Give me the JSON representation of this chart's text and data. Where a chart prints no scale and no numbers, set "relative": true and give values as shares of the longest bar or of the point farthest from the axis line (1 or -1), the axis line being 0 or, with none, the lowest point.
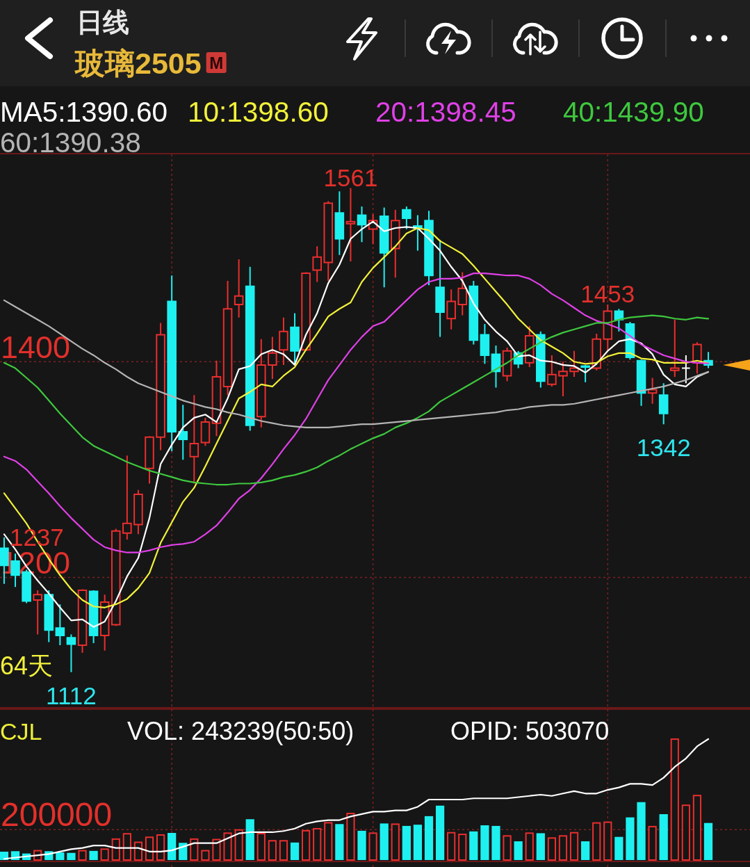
{
  "chart_data": [
    {
      "type": "candlestick",
      "title": "日线",
      "subtitle": "玻璃2505",
      "annotations": [
        "M",
        "64天",
        {
          "text": "1561",
          "y": 1561
        },
        {
          "text": "1453",
          "y": 1453
        },
        {
          "text": "1342",
          "y": 1342
        },
        {
          "text": "1112",
          "y": 1112
        },
        {
          "text": "1237",
          "y": 1237
        }
      ],
      "categories": [
        null,
        null,
        null,
        null,
        null,
        null,
        null,
        null,
        null,
        null,
        null,
        null,
        null,
        null,
        null,
        null,
        null,
        null,
        null,
        null,
        null,
        null,
        null,
        null,
        null,
        null,
        null,
        null,
        null,
        null,
        null,
        null,
        null,
        null,
        null,
        null,
        null,
        null,
        null,
        null,
        null,
        null,
        null,
        null,
        null,
        null,
        null,
        null,
        null,
        null,
        null,
        null,
        null,
        null,
        null,
        null,
        null,
        null,
        null,
        null,
        null,
        null,
        null,
        null
      ],
      "ohlc": [
        [
          1227,
          1237,
          1194,
          1211
        ],
        [
          1215,
          1222,
          1191,
          1202
        ],
        [
          1205,
          1207,
          1176,
          1178
        ],
        [
          1179,
          1188,
          1147,
          1184
        ],
        [
          1184,
          1188,
          1140,
          1151
        ],
        [
          1153,
          1175,
          1137,
          1146
        ],
        [
          1144,
          1147,
          1112,
          1138
        ],
        [
          1137,
          1189,
          1130,
          1188
        ],
        [
          1187,
          1188,
          1139,
          1146
        ],
        [
          1146,
          1184,
          1132,
          1177
        ],
        [
          1156,
          1245,
          1155,
          1243
        ],
        [
          1241,
          1313,
          1235,
          1250
        ],
        [
          1249,
          1281,
          1240,
          1277
        ],
        [
          1301,
          1331,
          1287,
          1330
        ],
        [
          1330,
          1436,
          1318,
          1425
        ],
        [
          1456,
          1480,
          1317,
          1335
        ],
        [
          1335,
          1360,
          1309,
          1328
        ],
        [
          1312,
          1369,
          1287,
          1324
        ],
        [
          1325,
          1348,
          1322,
          1344
        ],
        [
          1343,
          1401,
          1331,
          1386
        ],
        [
          1377,
          1475,
          1369,
          1449
        ],
        [
          1453,
          1495,
          1441,
          1461
        ],
        [
          1470,
          1488,
          1336,
          1341
        ],
        [
          1349,
          1421,
          1339,
          1397
        ],
        [
          1397,
          1423,
          1384,
          1408
        ],
        [
          1411,
          1441,
          1397,
          1428
        ],
        [
          1432,
          1445,
          1397,
          1410
        ],
        [
          1411,
          1483,
          1410,
          1482
        ],
        [
          1485,
          1507,
          1474,
          1497
        ],
        [
          1492,
          1549,
          1475,
          1547
        ],
        [
          1538,
          1558,
          1499,
          1514
        ],
        [
          1528,
          1561,
          1493,
          1530
        ],
        [
          1536,
          1544,
          1511,
          1527
        ],
        [
          1523,
          1537,
          1509,
          1531
        ],
        [
          1535,
          1543,
          1469,
          1501
        ],
        [
          1505,
          1541,
          1478,
          1531
        ],
        [
          1541,
          1544,
          1523,
          1533
        ],
        [
          1526,
          1536,
          1503,
          1524
        ],
        [
          1531,
          1540,
          1471,
          1480
        ],
        [
          1469,
          1513,
          1423,
          1446
        ],
        [
          1440,
          1467,
          1430,
          1456
        ],
        [
          1453,
          1483,
          1443,
          1468
        ],
        [
          1470,
          1475,
          1416,
          1420
        ],
        [
          1425,
          1435,
          1398,
          1406
        ],
        [
          1407,
          1415,
          1376,
          1391
        ],
        [
          1387,
          1413,
          1382,
          1410
        ],
        [
          1408,
          1410,
          1394,
          1398
        ],
        [
          1399,
          1433,
          1395,
          1424
        ],
        [
          1425,
          1428,
          1376,
          1382
        ],
        [
          1379,
          1406,
          1377,
          1388
        ],
        [
          1387,
          1400,
          1368,
          1391
        ],
        [
          1391,
          1410,
          1386,
          1394
        ],
        [
          1396,
          1397,
          1381,
          1395
        ],
        [
          1394,
          1426,
          1392,
          1421
        ],
        [
          1421,
          1453,
          1410,
          1447
        ],
        [
          1447,
          1449,
          1428,
          1439
        ],
        [
          1435,
          1437,
          1402,
          1404
        ],
        [
          1401,
          1402,
          1359,
          1371
        ],
        [
          1371,
          1385,
          1361,
          1374
        ],
        [
          1369,
          1380,
          1342,
          1352
        ],
        [
          1392,
          1439,
          1386,
          1394
        ],
        [
          1394,
          1406,
          1380,
          1394
        ],
        [
          1399,
          1418,
          1389,
          1416
        ],
        [
          1401,
          1409,
          1394,
          1397
        ]
      ],
      "colors": [
        "#1ef0f0",
        "#1ef0f0",
        "#1ef0f0",
        "#ea2e2e",
        "#1ef0f0",
        "#1ef0f0",
        "#1ef0f0",
        "#ea2e2e",
        "#1ef0f0",
        "#ea2e2e",
        "#ea2e2e",
        "#ea2e2e",
        "#ea2e2e",
        "#ea2e2e",
        "#ea2e2e",
        "#1ef0f0",
        "#1ef0f0",
        "#ea2e2e",
        "#ea2e2e",
        "#ea2e2e",
        "#ea2e2e",
        "#ea2e2e",
        "#1ef0f0",
        "#ea2e2e",
        "#ea2e2e",
        "#ea2e2e",
        "#1ef0f0",
        "#ea2e2e",
        "#ea2e2e",
        "#ea2e2e",
        "#1ef0f0",
        "#ea2e2e",
        "#1ef0f0",
        "#ea2e2e",
        "#1ef0f0",
        "#ea2e2e",
        "#1ef0f0",
        "#1ef0f0",
        "#1ef0f0",
        "#1ef0f0",
        "#ea2e2e",
        "#ea2e2e",
        "#1ef0f0",
        "#1ef0f0",
        "#1ef0f0",
        "#ea2e2e",
        "#1ef0f0",
        "#ea2e2e",
        "#1ef0f0",
        "#ea2e2e",
        "#ea2e2e",
        "#ea2e2e",
        "#1ef0f0",
        "#ea2e2e",
        "#ea2e2e",
        "#1ef0f0",
        "#1ef0f0",
        "#1ef0f0",
        "#ea2e2e",
        "#1ef0f0",
        "#ea2e2e",
        "#ffffff",
        "#ea2e2e",
        "#1ef0f0"
      ],
      "series": [
        {
          "name": "MA5:1390.60",
          "type": "line",
          "color": "#ffffff",
          "values": [
            1240,
            1226,
            1210,
            1197,
            1185,
            1172,
            1160,
            1161,
            1154,
            1159,
            1178,
            1201,
            1218,
            1255,
            1305,
            1323,
            1339,
            1348,
            1351,
            1344,
            1366,
            1393,
            1396,
            1407,
            1411,
            1407,
            1397,
            1425,
            1445,
            1473,
            1490,
            1514,
            1523,
            1530,
            1521,
            1524,
            1525,
            1524,
            1514,
            1503,
            1488,
            1475,
            1454,
            1439,
            1428,
            1419,
            1405,
            1406,
            1401,
            1400,
            1397,
            1396,
            1390,
            1398,
            1410,
            1419,
            1421,
            1417,
            1407,
            1388,
            1379,
            1377,
            1386,
            1390.6
          ]
        },
        {
          "name": "10:1398.60",
          "type": "line",
          "color": "#f2f23a",
          "values": [
            1278,
            1264,
            1250,
            1233,
            1217,
            1202,
            1189,
            1179,
            1173,
            1172,
            1175,
            1180,
            1190,
            1204,
            1232,
            1251,
            1270,
            1283,
            1303,
            1324,
            1345,
            1366,
            1372,
            1379,
            1377,
            1387,
            1395,
            1411,
            1426,
            1442,
            1449,
            1455,
            1474,
            1487,
            1497,
            1507,
            1519,
            1524,
            1522,
            1512,
            1506,
            1500,
            1489,
            1477,
            1465,
            1453,
            1440,
            1430,
            1420,
            1414,
            1408,
            1400,
            1398,
            1399,
            1405,
            1408,
            1408,
            1403,
            1402,
            1399,
            1399,
            1399,
            1401,
            1398.6
          ]
        },
        {
          "name": "20:1398.45",
          "type": "line",
          "color": "#e040e8",
          "values": [
            1312,
            1308,
            1300,
            1289,
            1278,
            1266,
            1255,
            1245,
            1235,
            1228,
            1225,
            1223,
            1223,
            1225,
            1228,
            1230,
            1231,
            1233,
            1240,
            1248,
            1260,
            1273,
            1281,
            1292,
            1305,
            1319,
            1332,
            1347,
            1365,
            1383,
            1397,
            1411,
            1423,
            1433,
            1437,
            1447,
            1457,
            1467,
            1474,
            1477,
            1477,
            1478,
            1482,
            1482,
            1481,
            1480,
            1480,
            1477,
            1471,
            1463,
            1457,
            1450,
            1443,
            1438,
            1435,
            1431,
            1424,
            1416,
            1411,
            1406,
            1403,
            1400,
            1399,
            1398.45
          ]
        },
        {
          "name": "40:1439.90",
          "type": "line",
          "color": "#3ec83e",
          "values": [
            1399,
            1394,
            1385,
            1376,
            1364,
            1352,
            1341,
            1330,
            1322,
            1317,
            1312,
            1307,
            1303,
            1299,
            1296,
            1293,
            1290,
            1288,
            1287,
            1286,
            1286,
            1287,
            1287,
            1288,
            1290,
            1293,
            1295,
            1298,
            1302,
            1308,
            1313,
            1319,
            1324,
            1329,
            1333,
            1339,
            1343,
            1348,
            1354,
            1363,
            1369,
            1375,
            1381,
            1387,
            1393,
            1399,
            1406,
            1412,
            1418,
            1423,
            1427,
            1430,
            1433,
            1436,
            1436,
            1439,
            1441,
            1442,
            1443,
            1442,
            1440,
            1439,
            1441,
            1439.9
          ]
        },
        {
          "name": "60:1390.38",
          "type": "line",
          "color": "#b4b4b4",
          "values": [
            1457,
            1451,
            1445,
            1439,
            1433,
            1426,
            1419,
            1412,
            1406,
            1399,
            1393,
            1386,
            1380,
            1376,
            1372,
            1368,
            1364,
            1361,
            1358,
            1356,
            1353,
            1351,
            1348,
            1345,
            1343,
            1341,
            1340,
            1339,
            1339,
            1339,
            1340,
            1341,
            1342,
            1342,
            1343,
            1344,
            1345,
            1346,
            1347,
            1348,
            1349,
            1350,
            1351,
            1352,
            1353,
            1355,
            1356,
            1358,
            1359,
            1360,
            1360,
            1361,
            1363,
            1365,
            1367,
            1369,
            1371,
            1373,
            1375,
            1377,
            1380,
            1383,
            1387,
            1390.38
          ]
        }
      ],
      "ylim": [
        1079,
        1593
      ],
      "yticks": [
        1200,
        1400
      ],
      "grid": true,
      "legend": "top",
      "tick_labels": "y"
    },
    {
      "type": "bar",
      "title": "CJL",
      "subtitle": "VOL: 243239(50:50)",
      "categories": [
        null,
        null,
        null,
        null,
        null,
        null,
        null,
        null,
        null,
        null,
        null,
        null,
        null,
        null,
        null,
        null,
        null,
        null,
        null,
        null,
        null,
        null,
        null,
        null,
        null,
        null,
        null,
        null,
        null,
        null,
        null,
        null,
        null,
        null,
        null,
        null,
        null,
        null,
        null,
        null,
        null,
        null,
        null,
        null,
        null,
        null,
        null,
        null,
        null,
        null,
        null,
        null,
        null,
        null,
        null,
        null,
        null,
        null,
        null,
        null,
        null,
        null,
        null,
        null
      ],
      "series": [
        {
          "colors": [
            "#1ef0f0",
            "#1ef0f0",
            "#1ef0f0",
            "#ea2e2e",
            "#1ef0f0",
            "#1ef0f0",
            "#1ef0f0",
            "#ea2e2e",
            "#1ef0f0",
            "#ea2e2e",
            "#ea2e2e",
            "#ea2e2e",
            "#ea2e2e",
            "#ea2e2e",
            "#ea2e2e",
            "#1ef0f0",
            "#1ef0f0",
            "#ea2e2e",
            "#ea2e2e",
            "#ea2e2e",
            "#ea2e2e",
            "#ea2e2e",
            "#1ef0f0",
            "#ea2e2e",
            "#ea2e2e",
            "#ea2e2e",
            "#1ef0f0",
            "#ea2e2e",
            "#ea2e2e",
            "#ea2e2e",
            "#1ef0f0",
            "#ea2e2e",
            "#1ef0f0",
            "#ea2e2e",
            "#1ef0f0",
            "#ea2e2e",
            "#1ef0f0",
            "#1ef0f0",
            "#1ef0f0",
            "#1ef0f0",
            "#ea2e2e",
            "#ea2e2e",
            "#1ef0f0",
            "#1ef0f0",
            "#1ef0f0",
            "#ea2e2e",
            "#1ef0f0",
            "#ea2e2e",
            "#1ef0f0",
            "#ea2e2e",
            "#ea2e2e",
            "#ea2e2e",
            "#1ef0f0",
            "#ea2e2e",
            "#ea2e2e",
            "#1ef0f0",
            "#1ef0f0",
            "#1ef0f0",
            "#ea2e2e",
            "#1ef0f0",
            "#ea2e2e",
            "#ea2e2e",
            "#ea2e2e",
            "#1ef0f0"
          ],
          "values": [
            55000,
            58000,
            43000,
            66000,
            58000,
            50000,
            47000,
            66000,
            60000,
            76000,
            142000,
            177000,
            121000,
            154000,
            169000,
            178000,
            113000,
            142000,
            66000,
            139000,
            181000,
            202000,
            268000,
            178000,
            131000,
            131000,
            115000,
            197000,
            210000,
            249000,
            236000,
            310000,
            192000,
            181000,
            240000,
            240000,
            224000,
            232000,
            288000,
            357000,
            184000,
            173000,
            188000,
            228000,
            224000,
            163000,
            123000,
            181000,
            176000,
            149000,
            163000,
            184000,
            123000,
            248000,
            253000,
            152000,
            280000,
            380000,
            224000,
            301000,
            798000,
            364000,
            428000,
            243239
          ]
        }
      ],
      "ylim": [
        0,
        990000
      ],
      "yticks": [
        200000
      ],
      "grid": true,
      "tick_labels": "y"
    },
    {
      "type": "line",
      "relative": true,
      "categories": [
        null,
        null,
        null,
        null,
        null,
        null,
        null,
        null,
        null,
        null,
        null,
        null,
        null,
        null,
        null,
        null,
        null,
        null,
        null,
        null,
        null,
        null,
        null,
        null,
        null,
        null,
        null,
        null,
        null,
        null,
        null,
        null,
        null,
        null,
        null,
        null,
        null,
        null,
        null,
        null,
        null,
        null,
        null,
        null,
        null,
        null,
        null,
        null,
        null,
        null,
        null,
        null,
        null,
        null,
        null,
        null,
        null,
        null,
        null,
        null,
        null,
        null,
        null,
        null
      ],
      "series": [
        {
          "name": "OPID: 503070",
          "color": "#ffffff",
          "values": [
            0.01,
            0.02,
            0.03,
            0.04,
            0.05,
            0.07,
            0.09,
            0.1,
            0.12,
            0.12,
            0.1,
            0.1,
            0.1,
            0.07,
            0.07,
            0.08,
            0.11,
            0.14,
            0.14,
            0.14,
            0.18,
            0.22,
            0.23,
            0.23,
            0.23,
            0.24,
            0.26,
            0.3,
            0.32,
            0.33,
            0.33,
            0.36,
            0.38,
            0.4,
            0.4,
            0.41,
            0.41,
            0.44,
            0.5,
            0.5,
            0.5,
            0.5,
            0.51,
            0.51,
            0.51,
            0.51,
            0.52,
            0.53,
            0.54,
            0.53,
            0.55,
            0.57,
            0.55,
            0.55,
            0.58,
            0.6,
            0.63,
            0.63,
            0.62,
            0.68,
            0.77,
            0.84,
            0.94,
            1
          ]
        }
      ],
      "legend": "top"
    }
  ]
}
